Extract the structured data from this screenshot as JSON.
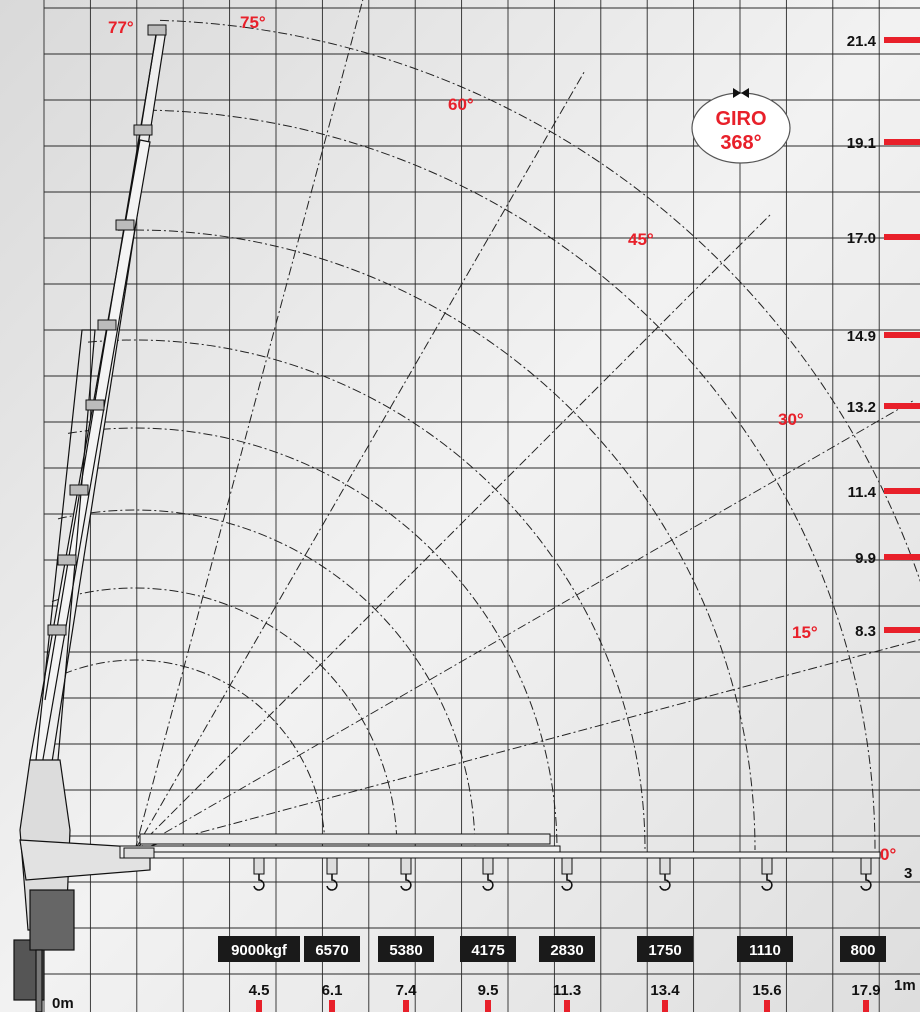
{
  "colors": {
    "red": "#e8202a",
    "grid": "#2a2a2a",
    "badge_bg": "#1a1a1a",
    "badge_text": "#ffffff",
    "background": "#e6e6e6"
  },
  "angles": [
    "77°",
    "75°",
    "60°",
    "45°",
    "30°",
    "15°",
    "0°"
  ],
  "giro": {
    "line1": "GIRO",
    "line2": "368°"
  },
  "heights": [
    "21.4",
    "19.1",
    "17.0",
    "14.9",
    "13.2",
    "11.4",
    "9.9",
    "8.3"
  ],
  "loads": [
    "9000kgf",
    "6570",
    "5380",
    "4175",
    "2830",
    "1750",
    "1110",
    "800"
  ],
  "reaches": [
    "4.5",
    "6.1",
    "7.4",
    "9.5",
    "11.3",
    "13.4",
    "15.6",
    "17.9"
  ],
  "axis": {
    "origin": "0m",
    "unit": "1m",
    "side": "3"
  },
  "icons": {
    "giro": "rotation-arrows-icon",
    "hook": "hook-icon"
  }
}
